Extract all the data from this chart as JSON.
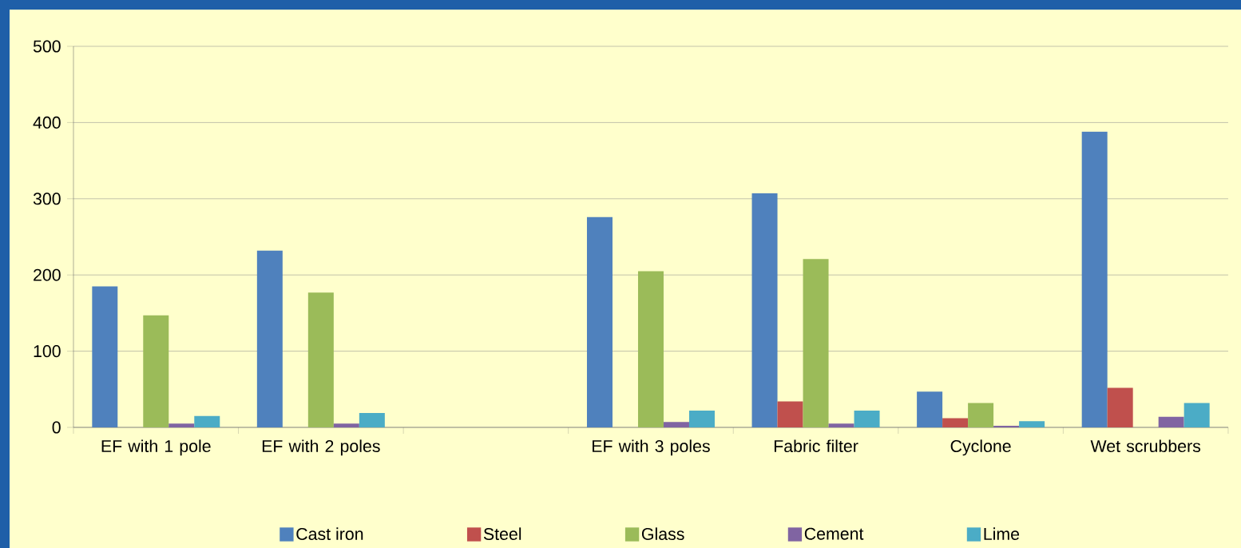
{
  "chart_data": {
    "type": "bar",
    "categories": [
      "EF with 1 pole",
      "EF with 2 poles",
      null,
      "EF with 3 poles",
      "Fabric filter",
      "Cyclone",
      "Wet scrubbers"
    ],
    "series": [
      {
        "name": "Cast iron",
        "color": "#4f81bd",
        "values": [
          185,
          232,
          null,
          276,
          307,
          47,
          388
        ]
      },
      {
        "name": "Steel",
        "color": "#c0504d",
        "values": [
          null,
          null,
          null,
          null,
          34,
          12,
          52
        ]
      },
      {
        "name": "Glass",
        "color": "#9bbb59",
        "values": [
          147,
          177,
          null,
          205,
          221,
          32,
          null
        ]
      },
      {
        "name": "Cement",
        "color": "#8064a2",
        "values": [
          5,
          5,
          null,
          7,
          5,
          2,
          14
        ]
      },
      {
        "name": "Lime",
        "color": "#4bacc6",
        "values": [
          15,
          19,
          null,
          22,
          22,
          8,
          32
        ]
      }
    ],
    "ylim": [
      0,
      500
    ],
    "yticks": [
      0,
      100,
      200,
      300,
      400,
      500
    ],
    "grid": "y",
    "legend": "bottom"
  }
}
